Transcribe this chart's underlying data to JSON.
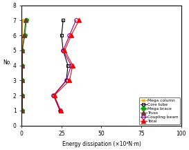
{
  "floors": [
    1,
    2,
    3,
    4,
    5,
    6,
    7
  ],
  "mega_column": [
    0.3,
    0.3,
    0.3,
    0.3,
    0.3,
    0.3,
    0.3
  ],
  "core_tube": [
    24,
    20,
    28,
    29,
    26,
    25,
    26
  ],
  "mega_brace": [
    0.3,
    0.3,
    0.3,
    0.3,
    0.3,
    2,
    3
  ],
  "truss": [
    0.5,
    0.5,
    0.5,
    0.5,
    0.5,
    1.5,
    2.5
  ],
  "coupling_beam": [
    24,
    20,
    28,
    31,
    26,
    30,
    34
  ],
  "total": [
    24.5,
    20.5,
    30,
    32,
    27,
    31,
    36
  ],
  "xlim": [
    0,
    100
  ],
  "ylim": [
    0,
    8
  ],
  "xlabel": "Energy dissipation (×10⁴N·m)",
  "yticks": [
    0,
    1,
    2,
    3,
    4,
    5,
    6,
    7,
    8
  ],
  "xticks": [
    0,
    25,
    50,
    75,
    100
  ],
  "ylabel": "No.",
  "colors": {
    "mega_column": "#FFA500",
    "core_tube": "#000000",
    "mega_brace": "#00AA00",
    "truss": "#6B3A2A",
    "coupling_beam": "#8B008B",
    "total": "#FF0000"
  },
  "legend_labels": [
    "Mega column",
    "Core tube",
    "Mega brace",
    "Truss",
    "Coupling beam",
    "Total"
  ],
  "figsize": [
    2.73,
    2.17
  ],
  "dpi": 100
}
